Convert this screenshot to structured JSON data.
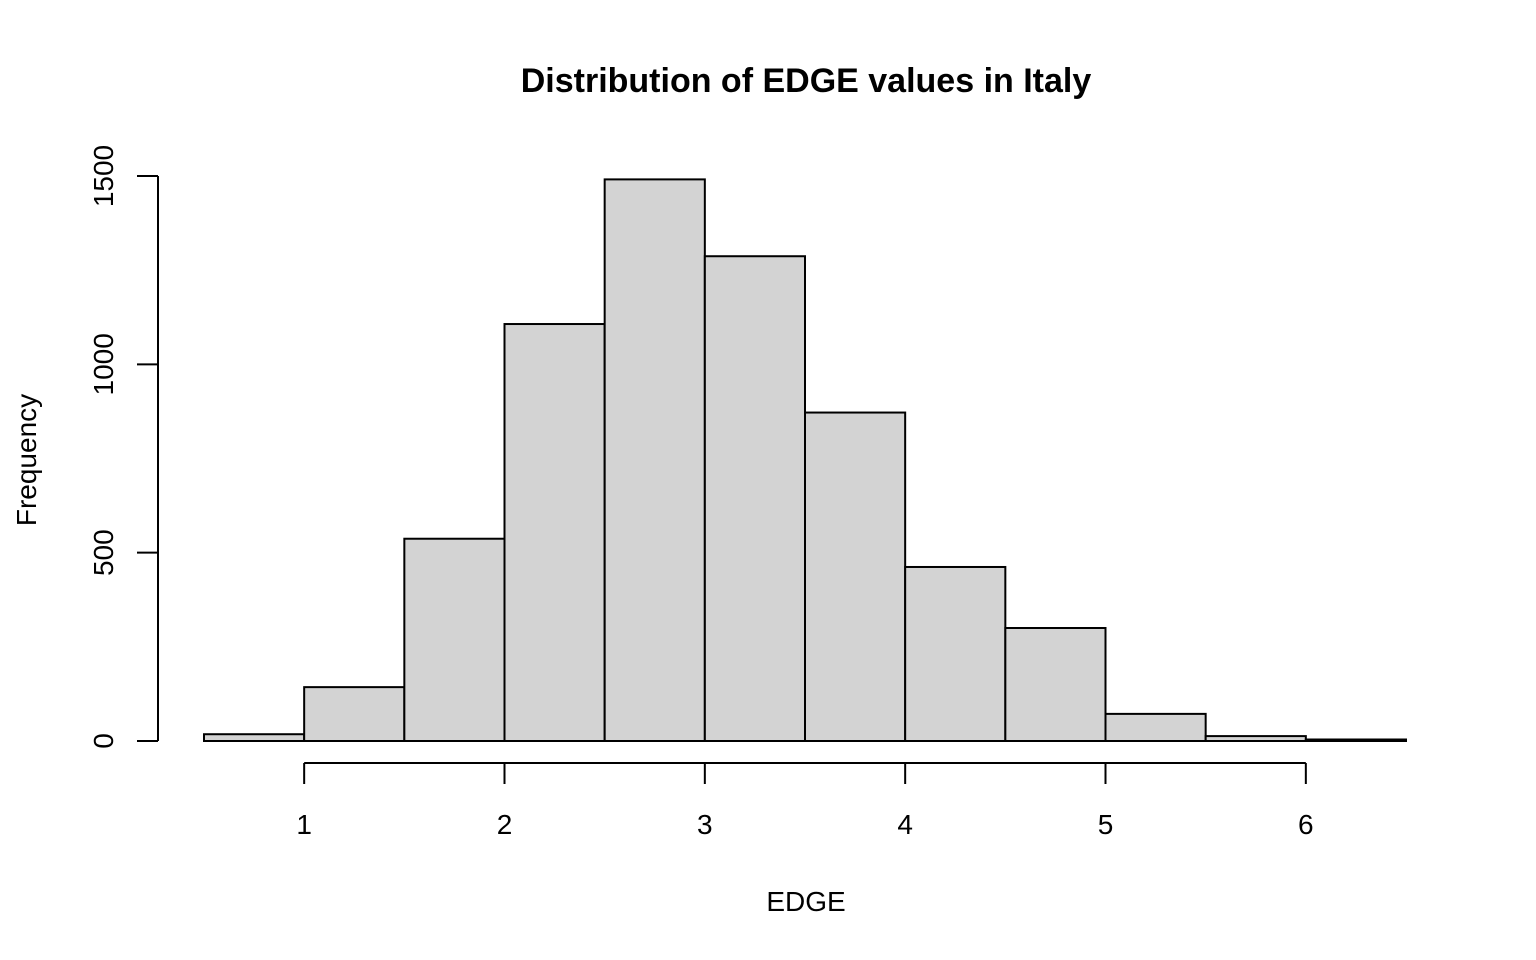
{
  "chart_data": {
    "type": "bar",
    "title": "Distribution of EDGE values in Italy",
    "xlabel": "EDGE",
    "ylabel": "Frequency",
    "bin_width": 0.5,
    "bins": [
      {
        "x0": 0.5,
        "x1": 1.0,
        "count": 18
      },
      {
        "x0": 1.0,
        "x1": 1.5,
        "count": 143
      },
      {
        "x0": 1.5,
        "x1": 2.0,
        "count": 537
      },
      {
        "x0": 2.0,
        "x1": 2.5,
        "count": 1107
      },
      {
        "x0": 2.5,
        "x1": 3.0,
        "count": 1491
      },
      {
        "x0": 3.0,
        "x1": 3.5,
        "count": 1287
      },
      {
        "x0": 3.5,
        "x1": 4.0,
        "count": 872
      },
      {
        "x0": 4.0,
        "x1": 4.5,
        "count": 462
      },
      {
        "x0": 4.5,
        "x1": 5.0,
        "count": 300
      },
      {
        "x0": 5.0,
        "x1": 5.5,
        "count": 72
      },
      {
        "x0": 5.5,
        "x1": 6.0,
        "count": 13
      },
      {
        "x0": 6.0,
        "x1": 6.5,
        "count": 4
      }
    ],
    "x_ticks": [
      1,
      2,
      3,
      4,
      5,
      6
    ],
    "x_tick_labels": [
      "1",
      "2",
      "3",
      "4",
      "5",
      "6"
    ],
    "y_ticks": [
      0,
      500,
      1000,
      1500
    ],
    "y_tick_labels": [
      "0",
      "500",
      "1000",
      "1500"
    ],
    "xlim": [
      0.5,
      6.5
    ],
    "ylim": [
      0,
      1500
    ],
    "grid": false,
    "bar_fill": "#d3d3d3",
    "bar_edge": "#000000"
  }
}
